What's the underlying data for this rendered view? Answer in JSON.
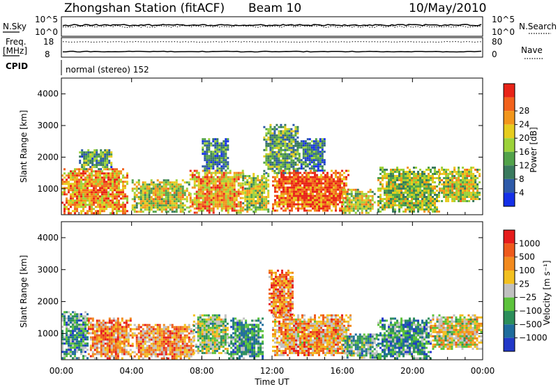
{
  "header": {
    "station": "Zhongshan Station (fitACF)",
    "beam": "Beam 10",
    "date": "10/May/2010"
  },
  "strip": {
    "nsky_label": "N.Sky",
    "nsearch_label": "N.Search",
    "freq_label_1": "Freq.",
    "freq_label_2": "[MHz]",
    "nave_label": "Nave",
    "cpid_label": "CPID",
    "cpid_text": "normal (stereo) 152",
    "nsky_ticks": [
      "10^5",
      "10^0"
    ],
    "nsearch_ticks": [
      "10^5",
      "10^0"
    ],
    "freq_ticks": [
      "18",
      "8"
    ],
    "nave_ticks": [
      "80",
      "0"
    ]
  },
  "x_axis": {
    "ticks": [
      "00:00",
      "04:00",
      "08:00",
      "12:00",
      "16:00",
      "20:00",
      "00:00"
    ],
    "label": "Time UT"
  },
  "chart_data": [
    {
      "type": "heatmap",
      "title": "",
      "ylabel": "Slant Range [km]",
      "xlabel": "Time UT",
      "ylim": [
        180,
        4500
      ],
      "y_ticks": [
        "1000",
        "2000",
        "3000",
        "4000"
      ],
      "colorbar": {
        "label": "Power [dB]",
        "range": [
          0,
          32
        ],
        "ticks": [
          "4",
          "8",
          "12",
          "16",
          "20",
          "24",
          "28"
        ],
        "colors": [
          "#1530e8",
          "#2e5aa8",
          "#3a7a5e",
          "#52a24a",
          "#9cd23a",
          "#e6cc1e",
          "#f2961c",
          "#f2621c",
          "#e82418"
        ]
      },
      "regions": [
        {
          "t0": 0.0,
          "t1": 3.8,
          "r0": 250,
          "r1": 1650,
          "level": 0.72
        },
        {
          "t0": 1.0,
          "t1": 2.8,
          "r0": 1650,
          "r1": 2250,
          "level": 0.35
        },
        {
          "t0": 4.0,
          "t1": 7.3,
          "r0": 250,
          "r1": 1300,
          "level": 0.55
        },
        {
          "t0": 7.3,
          "t1": 10.3,
          "r0": 250,
          "r1": 1600,
          "level": 0.7
        },
        {
          "t0": 8.0,
          "t1": 9.5,
          "r0": 1600,
          "r1": 2600,
          "level": 0.3
        },
        {
          "t0": 10.3,
          "t1": 11.8,
          "r0": 250,
          "r1": 1500,
          "level": 0.5
        },
        {
          "t0": 11.5,
          "t1": 13.5,
          "r0": 1500,
          "r1": 3050,
          "level": 0.38
        },
        {
          "t0": 12.0,
          "t1": 16.3,
          "r0": 300,
          "r1": 1600,
          "level": 0.85
        },
        {
          "t0": 13.5,
          "t1": 15.0,
          "r0": 1600,
          "r1": 2600,
          "level": 0.25
        },
        {
          "t0": 16.0,
          "t1": 17.8,
          "r0": 250,
          "r1": 1000,
          "level": 0.55
        },
        {
          "t0": 18.0,
          "t1": 21.5,
          "r0": 250,
          "r1": 1700,
          "level": 0.5
        },
        {
          "t0": 21.5,
          "t1": 23.8,
          "r0": 600,
          "r1": 1700,
          "level": 0.55
        }
      ]
    },
    {
      "type": "heatmap",
      "title": "",
      "ylabel": "Slant Range [km]",
      "xlabel": "Time UT",
      "ylim": [
        180,
        4500
      ],
      "y_ticks": [
        "1000",
        "2000",
        "3000",
        "4000"
      ],
      "colorbar": {
        "label": "Velocity [m s⁻¹]",
        "ticks": [
          "1000",
          "500",
          "100",
          "25",
          "−25",
          "−100",
          "−500",
          "−1000"
        ],
        "colors": [
          "#2238c8",
          "#1f6c9c",
          "#2c8e5a",
          "#5cc23c",
          "#c0c0c0",
          "#f2c020",
          "#f28a1e",
          "#ee5a1c",
          "#e61c1c"
        ]
      },
      "regions": [
        {
          "t0": 0.0,
          "t1": 1.5,
          "r0": 250,
          "r1": 1700,
          "level": 0.3
        },
        {
          "t0": 1.5,
          "t1": 4.0,
          "r0": 250,
          "r1": 1500,
          "level": 0.72
        },
        {
          "t0": 4.0,
          "t1": 7.5,
          "r0": 250,
          "r1": 1300,
          "level": 0.7
        },
        {
          "t0": 7.5,
          "t1": 9.5,
          "r0": 400,
          "r1": 1600,
          "level": 0.44
        },
        {
          "t0": 9.5,
          "t1": 11.5,
          "r0": 250,
          "r1": 1500,
          "level": 0.3
        },
        {
          "t0": 11.8,
          "t1": 13.2,
          "r0": 1500,
          "r1": 3000,
          "level": 0.75
        },
        {
          "t0": 12.0,
          "t1": 16.5,
          "r0": 300,
          "r1": 1600,
          "level": 0.68
        },
        {
          "t0": 16.0,
          "t1": 18.0,
          "r0": 250,
          "r1": 1000,
          "level": 0.35
        },
        {
          "t0": 18.0,
          "t1": 21.0,
          "r0": 250,
          "r1": 1500,
          "level": 0.28
        },
        {
          "t0": 21.0,
          "t1": 23.9,
          "r0": 500,
          "r1": 1600,
          "level": 0.55
        }
      ]
    }
  ]
}
